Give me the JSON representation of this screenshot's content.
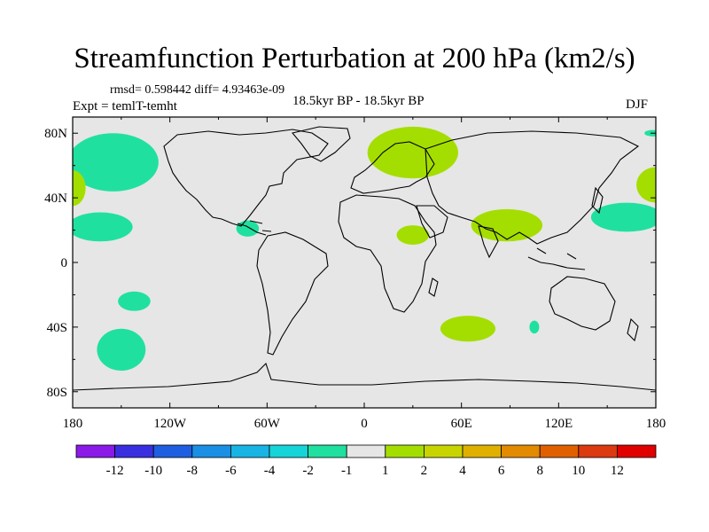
{
  "title": "Streamfunction Perturbation at 200 hPa (km2/s)",
  "stats": "rmsd= 0.598442 diff= 4.93463e-09",
  "experiment": "Expt = temlT-temht",
  "period": "18.5kyr BP - 18.5kyr BP",
  "season": "DJF",
  "colors": {
    "background": "#e6e6e6",
    "negative_small": "#20e0a0",
    "positive_small": "#a4de00"
  },
  "x_axis": {
    "ticks": [
      {
        "lon": -180,
        "label": "180"
      },
      {
        "lon": -120,
        "label": "120W"
      },
      {
        "lon": -60,
        "label": "60W"
      },
      {
        "lon": 0,
        "label": "0"
      },
      {
        "lon": 60,
        "label": "60E"
      },
      {
        "lon": 120,
        "label": "120E"
      },
      {
        "lon": 180,
        "label": "180"
      }
    ]
  },
  "y_axis": {
    "ticks": [
      {
        "lat": 80,
        "label": "80N"
      },
      {
        "lat": 40,
        "label": "40N"
      },
      {
        "lat": 0,
        "label": "0"
      },
      {
        "lat": -40,
        "label": "40S"
      },
      {
        "lat": -80,
        "label": "80S"
      }
    ]
  },
  "colorbar": {
    "labels": [
      "-12",
      "-10",
      "-8",
      "-6",
      "-4",
      "-2",
      "-1",
      "1",
      "2",
      "4",
      "6",
      "8",
      "10",
      "12"
    ],
    "colors": [
      "#8b1ae8",
      "#3a2fe0",
      "#1d5fe0",
      "#1a8fe4",
      "#18b4e4",
      "#16d4d8",
      "#20e0a0",
      "#e6e6e6",
      "#a4de00",
      "#c8d400",
      "#e0b000",
      "#e28a00",
      "#e06000",
      "#dc3a10",
      "#e00000"
    ]
  },
  "chart_data": {
    "type": "map",
    "title": "Streamfunction Perturbation at 200 hPa (km2/s)",
    "projection": "cylindrical-equidistant",
    "lon_range": [
      -180,
      180
    ],
    "lat_range": [
      -90,
      90
    ],
    "anomaly_regions": [
      {
        "name": "north-pacific-high-lat",
        "class": "-2 to -1",
        "center": [
          -155,
          62
        ],
        "radius_deg": [
          28,
          18
        ]
      },
      {
        "name": "north-pacific-mid-lat",
        "class": "-2 to -1",
        "center": [
          -163,
          22
        ],
        "radius_deg": [
          20,
          9
        ]
      },
      {
        "name": "caribbean",
        "class": "-2 to -1",
        "center": [
          -72,
          21
        ],
        "radius_deg": [
          7,
          5
        ]
      },
      {
        "name": "south-pacific-30s",
        "class": "-2 to -1",
        "center": [
          -142,
          -24
        ],
        "radius_deg": [
          10,
          6
        ]
      },
      {
        "name": "south-pacific-55s",
        "class": "-2 to -1",
        "center": [
          -150,
          -54
        ],
        "radius_deg": [
          15,
          13
        ]
      },
      {
        "name": "indian-ocean-south",
        "class": "-2 to -1",
        "center": [
          105,
          -40
        ],
        "radius_deg": [
          3,
          4
        ]
      },
      {
        "name": "west-pacific-20n",
        "class": "-2 to -1",
        "center": [
          162,
          28
        ],
        "radius_deg": [
          22,
          9
        ]
      },
      {
        "name": "east-edge-65n",
        "class": "-2 to -1",
        "center": [
          178,
          80
        ],
        "radius_deg": [
          5,
          2
        ]
      },
      {
        "name": "atlantic-europe-60n",
        "class": "1 to 2",
        "center": [
          30,
          68
        ],
        "radius_deg": [
          28,
          16
        ]
      },
      {
        "name": "africa-20n",
        "class": "1 to 2",
        "center": [
          30,
          17
        ],
        "radius_deg": [
          10,
          6
        ]
      },
      {
        "name": "south-asia",
        "class": "1 to 2",
        "center": [
          88,
          23
        ],
        "radius_deg": [
          22,
          10
        ]
      },
      {
        "name": "south-indian-ocean",
        "class": "1 to 2",
        "center": [
          64,
          -41
        ],
        "radius_deg": [
          17,
          8
        ]
      },
      {
        "name": "east-pacific-45n",
        "class": "1 to 2",
        "center": [
          180,
          48
        ],
        "radius_deg": [
          12,
          11
        ]
      },
      {
        "name": "west-edge-45n",
        "class": "1 to 2",
        "center": [
          -180,
          46
        ],
        "radius_deg": [
          8,
          11
        ]
      }
    ]
  }
}
